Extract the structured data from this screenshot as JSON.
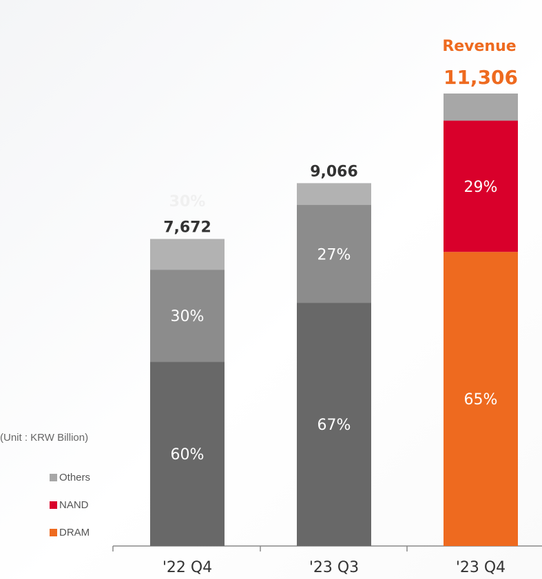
{
  "chart_data": {
    "type": "bar",
    "stacked": true,
    "unit_label": "(Unit : KRW Billion)",
    "revenue_title": "Revenue",
    "categories": [
      "'22 Q4",
      "'23 Q3",
      "'23 Q4"
    ],
    "totals": [
      "7,672",
      "9,066",
      "11,306"
    ],
    "total_values": [
      7672,
      9066,
      11306
    ],
    "series": [
      {
        "name": "DRAM",
        "color": "#ee6a1f",
        "shares": [
          60,
          67,
          65
        ],
        "labels": [
          "60%",
          "67%",
          "65%"
        ]
      },
      {
        "name": "NAND",
        "color": "#d9002b",
        "shares": [
          30,
          27,
          29
        ],
        "labels": [
          "30%",
          "27%",
          "29%"
        ]
      },
      {
        "name": "Others",
        "color": "#a7a7a7",
        "shares": [
          10,
          6,
          6
        ],
        "labels": [
          "",
          "",
          ""
        ]
      }
    ],
    "bar_colors": {
      "'22 Q4": [
        "#686868",
        "#8c8c8c",
        "#b2b2b2"
      ],
      "'23 Q3": [
        "#686868",
        "#8c8c8c",
        "#b2b2b2"
      ],
      "'23 Q4": [
        "#ee6a1f",
        "#d9002b",
        "#a7a7a7"
      ]
    },
    "total_label_colors": [
      "#333333",
      "#333333",
      "#ee6a1f"
    ],
    "ghost_label": "30%",
    "legend": [
      "Others",
      "NAND",
      "DRAM"
    ],
    "legend_colors": [
      "#a7a7a7",
      "#d9002b",
      "#ee6a1f"
    ]
  }
}
